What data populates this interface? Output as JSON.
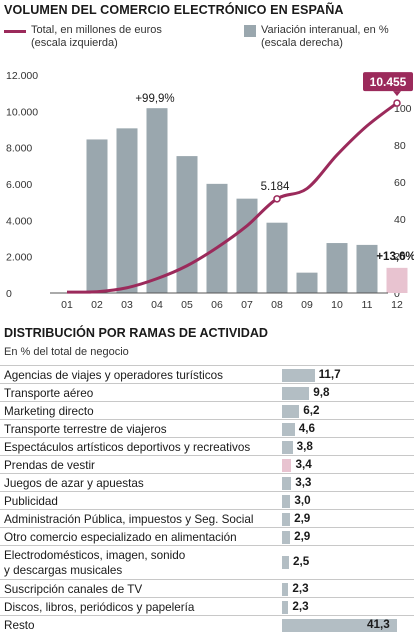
{
  "title": "VOLUMEN DEL COMERCIO ELECTRÓNICO EN ESPAÑA",
  "legend": {
    "line_label": "Total, en millones de euros\n(escala izquierda)",
    "bar_label": "Variación interanual, en %\n(escala derecha)"
  },
  "colors": {
    "line": "#9b2a5b",
    "bar": "#9aa7ae",
    "bar_highlight": "#e8c3d0",
    "hbar": "#b3bec4"
  },
  "chart_data": [
    {
      "type": "bar",
      "title": "VOLUMEN DEL COMERCIO ELECTRÓNICO EN ESPAÑA",
      "categories": [
        "01",
        "02",
        "03",
        "04",
        "05",
        "06",
        "07",
        "08",
        "09",
        "10",
        "11",
        "12"
      ],
      "left_axis": {
        "min": 0,
        "max": 12000,
        "ticks": [
          "0",
          "2.000",
          "4.000",
          "6.000",
          "8.000",
          "10.000",
          "12.000"
        ],
        "tick_values": [
          0,
          2000,
          4000,
          6000,
          8000,
          10000,
          12000
        ]
      },
      "right_axis": {
        "min": 0,
        "max": 120,
        "ticks": [
          "0",
          "20",
          "40",
          "60",
          "80",
          "100"
        ],
        "tick_values": [
          0,
          20,
          40,
          60,
          80,
          100
        ]
      },
      "series": [
        {
          "name": "Variación interanual, en %",
          "type": "bar",
          "axis": "right",
          "values": [
            null,
            83,
            89,
            99.9,
            74,
            59,
            51,
            38,
            11,
            27,
            26,
            13.6
          ]
        },
        {
          "name": "Total, en millones de euros",
          "type": "line",
          "axis": "left",
          "values": [
            50,
            70,
            290,
            790,
            1500,
            2500,
            3700,
            5184,
            5750,
            7600,
            9200,
            10455
          ]
        }
      ],
      "annotations": [
        {
          "text": "+99,9%",
          "category": "04",
          "series": "bar"
        },
        {
          "text": "5.184",
          "category": "08",
          "series": "line"
        },
        {
          "text": "10.455",
          "category": "12",
          "series": "line"
        },
        {
          "text": "+13,6%",
          "category": "12",
          "series": "bar"
        }
      ],
      "grid": false
    },
    {
      "type": "bar",
      "orientation": "horizontal",
      "title": "DISTRIBUCIÓN POR RAMAS DE ACTIVIDAD",
      "subtitle": "En % del total de negocio",
      "categories": [
        "Agencias de viajes y operadores turísticos",
        "Transporte aéreo",
        "Marketing directo",
        "Transporte terrestre de viajeros",
        "Espectáculos artísticos deportivos y recreativos",
        "Prendas de vestir",
        "Juegos de azar y apuestas",
        "Publicidad",
        "Administración Pública, impuestos y Seg. Social",
        "Otro comercio especializado en alimentación",
        "Electrodomésticos, imagen, sonido\ny descargas musicales",
        "Suscripción canales de TV",
        "Discos, libros, periódicos y papelería",
        "Resto"
      ],
      "values": [
        11.7,
        9.8,
        6.2,
        4.6,
        3.8,
        3.4,
        3.3,
        3.0,
        2.9,
        2.9,
        2.5,
        2.3,
        2.3,
        41.3
      ],
      "value_labels": [
        "11,7",
        "9,8",
        "6,2",
        "4,6",
        "3,8",
        "3,4",
        "3,3",
        "3,0",
        "2,9",
        "2,9",
        "2,5",
        "2,3",
        "2,3",
        "41,3"
      ],
      "highlight": [
        5
      ]
    }
  ]
}
